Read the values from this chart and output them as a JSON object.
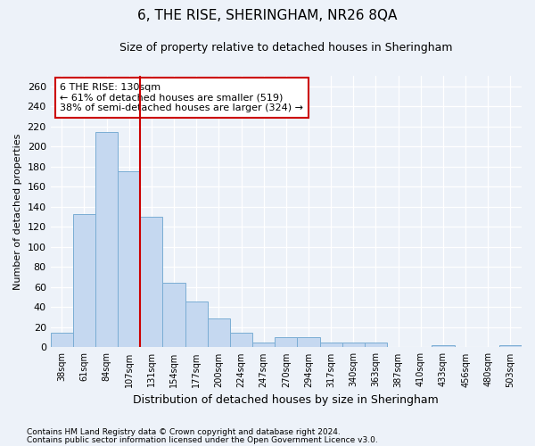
{
  "title": "6, THE RISE, SHERINGHAM, NR26 8QA",
  "subtitle": "Size of property relative to detached houses in Sheringham",
  "xlabel": "Distribution of detached houses by size in Sheringham",
  "ylabel": "Number of detached properties",
  "categories": [
    "38sqm",
    "61sqm",
    "84sqm",
    "107sqm",
    "131sqm",
    "154sqm",
    "177sqm",
    "200sqm",
    "224sqm",
    "247sqm",
    "270sqm",
    "294sqm",
    "317sqm",
    "340sqm",
    "363sqm",
    "387sqm",
    "410sqm",
    "433sqm",
    "456sqm",
    "480sqm",
    "503sqm"
  ],
  "values": [
    15,
    133,
    214,
    175,
    130,
    64,
    46,
    29,
    15,
    5,
    10,
    10,
    5,
    5,
    5,
    0,
    0,
    2,
    0,
    0,
    2
  ],
  "bar_color": "#c5d8f0",
  "bar_edge_color": "#7aadd4",
  "red_line_x": 3.5,
  "ylim": [
    0,
    270
  ],
  "yticks": [
    0,
    20,
    40,
    60,
    80,
    100,
    120,
    140,
    160,
    180,
    200,
    220,
    240,
    260
  ],
  "annotation_title": "6 THE RISE: 130sqm",
  "annotation_line1": "← 61% of detached houses are smaller (519)",
  "annotation_line2": "38% of semi-detached houses are larger (324) →",
  "annotation_box_color": "#ffffff",
  "annotation_box_edge": "#cc0000",
  "footer1": "Contains HM Land Registry data © Crown copyright and database right 2024.",
  "footer2": "Contains public sector information licensed under the Open Government Licence v3.0.",
  "background_color": "#edf2f9",
  "grid_color": "#ffffff",
  "title_fontsize": 11,
  "subtitle_fontsize": 9,
  "ylabel_fontsize": 8,
  "xlabel_fontsize": 9
}
